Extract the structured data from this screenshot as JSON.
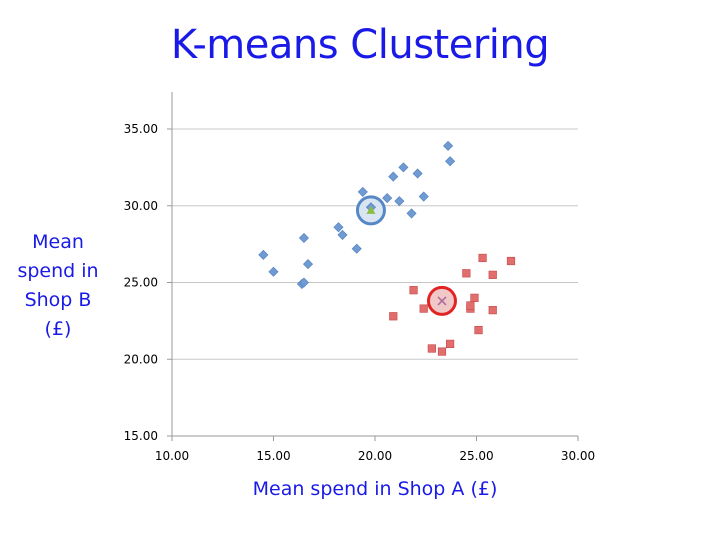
{
  "title": "K-means Clustering",
  "chart_data": {
    "type": "scatter",
    "xlabel": "Mean spend in Shop A (£)",
    "ylabel_lines": [
      "Mean",
      "spend in",
      "Shop B",
      "(£)"
    ],
    "xlim": [
      10,
      30
    ],
    "ylim": [
      15,
      35
    ],
    "xticks": [
      "10.00",
      "15.00",
      "20.00",
      "25.00",
      "30.00"
    ],
    "yticks": [
      "15.00",
      "20.00",
      "25.00",
      "30.00",
      "35.00"
    ],
    "grid": "horizontal",
    "colors": {
      "cluster1": "#6f9bd2",
      "cluster2": "#e26d6d",
      "centroid1_ring": "#4f82c4",
      "centroid1_fill": "#d7e4f3",
      "centroid1_marker": "#8cbe3f",
      "centroid2_ring": "#e01818",
      "centroid2_fill": "#f1c6c6",
      "centroid2_marker": "#b06a9c"
    },
    "series": [
      {
        "marker": "diamond",
        "points": [
          [
            14.5,
            26.8
          ],
          [
            15.0,
            25.7
          ],
          [
            16.4,
            24.9
          ],
          [
            16.5,
            25.0
          ],
          [
            16.7,
            26.2
          ],
          [
            16.5,
            27.9
          ],
          [
            18.2,
            28.6
          ],
          [
            18.4,
            28.1
          ],
          [
            19.1,
            27.2
          ],
          [
            19.4,
            30.9
          ],
          [
            19.8,
            29.9
          ],
          [
            20.6,
            30.5
          ],
          [
            20.9,
            31.9
          ],
          [
            21.2,
            30.3
          ],
          [
            21.4,
            32.5
          ],
          [
            21.8,
            29.5
          ],
          [
            22.1,
            32.1
          ],
          [
            22.4,
            30.6
          ],
          [
            23.6,
            33.9
          ],
          [
            23.7,
            32.9
          ]
        ]
      },
      {
        "marker": "square",
        "points": [
          [
            20.9,
            22.8
          ],
          [
            21.9,
            24.5
          ],
          [
            22.4,
            23.3
          ],
          [
            22.8,
            20.7
          ],
          [
            23.3,
            20.5
          ],
          [
            23.7,
            21.0
          ],
          [
            24.5,
            25.6
          ],
          [
            24.7,
            23.3
          ],
          [
            24.7,
            23.5
          ],
          [
            24.9,
            24.0
          ],
          [
            25.1,
            21.9
          ],
          [
            25.3,
            26.6
          ],
          [
            25.8,
            23.2
          ],
          [
            25.8,
            25.5
          ],
          [
            26.7,
            26.4
          ]
        ]
      }
    ],
    "centroids": [
      {
        "x": 19.8,
        "y": 29.7,
        "marker": "triangle"
      },
      {
        "x": 23.3,
        "y": 23.8,
        "marker": "cross"
      }
    ]
  }
}
